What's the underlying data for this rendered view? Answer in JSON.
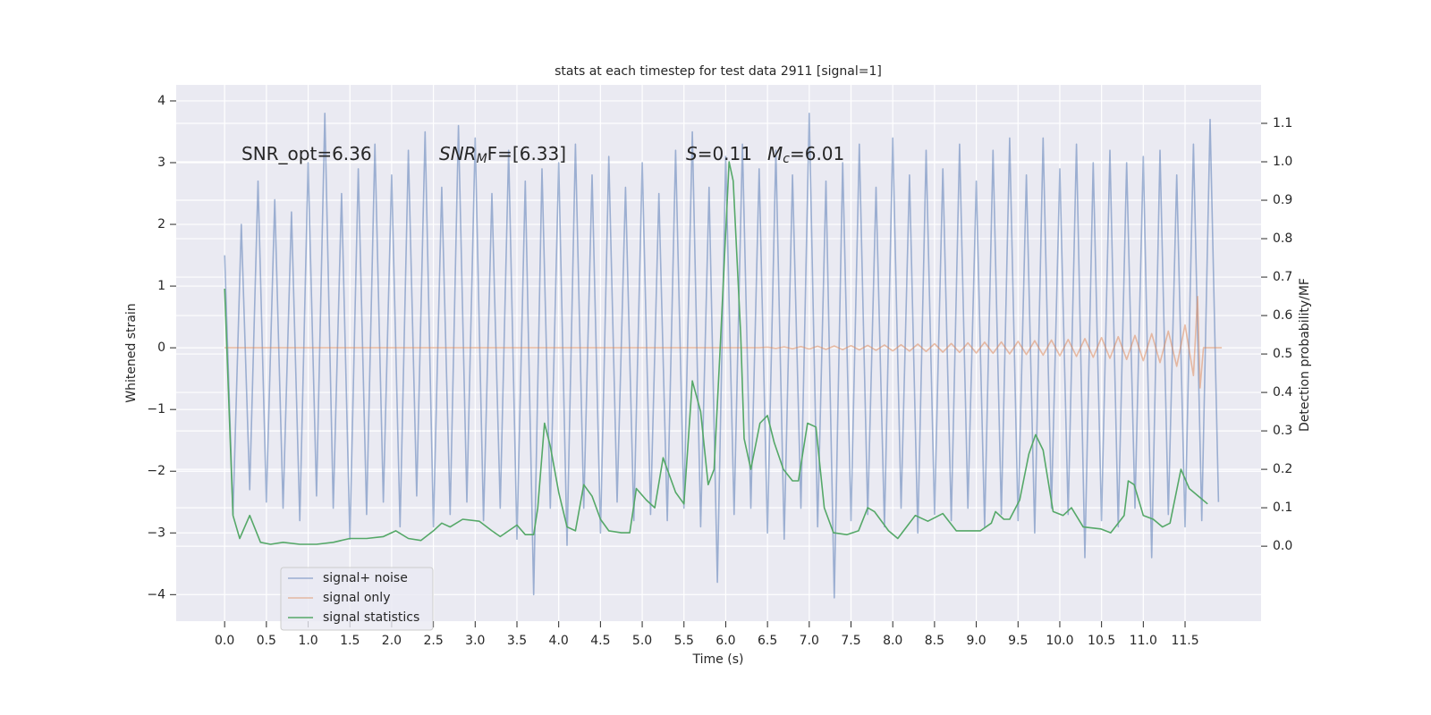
{
  "chart_data": {
    "type": "line",
    "title": "stats at each timestep for test data 2911 [signal=1]",
    "xlabel": "Time (s)",
    "ylabel": "Whitened strain",
    "y2label": "Detection probability/MF",
    "annotations": [
      {
        "main": "SNR_opt=6.36"
      },
      {
        "main": "SNR",
        "sub": "M",
        "tail": "F=[6.33]"
      },
      {
        "main": "S",
        "tail": "=0.11"
      },
      {
        "main": "M",
        "sub": "c",
        "tail": "=6.01"
      }
    ],
    "xlim": [
      -0.58,
      12.41
    ],
    "ylim": [
      -4.43,
      4.26
    ],
    "y2lim": [
      -0.195,
      1.2
    ],
    "xticks": [
      {
        "value": 0,
        "label": "0.0"
      },
      0.5,
      {
        "value": 1,
        "label": "1.0"
      },
      1.5,
      {
        "value": 2,
        "label": "2.0"
      },
      2.5,
      {
        "value": 3,
        "label": "3.0"
      },
      3.5,
      {
        "value": 4,
        "label": "4.0"
      },
      4.5,
      {
        "value": 5,
        "label": "5.0"
      },
      5.5,
      {
        "value": 6,
        "label": "6.0"
      },
      6.5,
      {
        "value": 7,
        "label": "7.0"
      },
      7.5,
      {
        "value": 8,
        "label": "8.0"
      },
      8.5,
      {
        "value": 9,
        "label": "9.0"
      },
      9.5,
      {
        "value": 10,
        "label": "10.0"
      },
      10.5,
      {
        "value": 11,
        "label": "11.0"
      },
      11.5
    ],
    "yticks": [
      {
        "value": -4,
        "label": "−4"
      },
      {
        "value": -3,
        "label": "−3"
      },
      {
        "value": -2,
        "label": "−2"
      },
      {
        "value": -1,
        "label": "−1"
      },
      0,
      1,
      2,
      3,
      4
    ],
    "y2ticks": [
      {
        "value": 0,
        "label": "0.0"
      },
      0.1,
      0.2,
      0.3,
      0.4,
      0.5,
      0.6,
      0.7,
      0.8,
      0.9,
      {
        "value": 1,
        "label": "1.0"
      },
      1.1
    ],
    "grid": true,
    "legend_loc": "lower left",
    "series": [
      {
        "name": "signal+ noise",
        "color": "#4c72b0",
        "alpha": 0.5,
        "x": [
          0,
          0.1,
          0.2,
          0.3,
          0.4,
          0.5,
          0.6,
          0.7,
          0.8,
          0.9,
          1,
          1.1,
          1.2,
          1.3,
          1.4,
          1.5,
          1.6,
          1.7,
          1.8,
          1.9,
          2,
          2.1,
          2.2,
          2.3,
          2.4,
          2.5,
          2.6,
          2.7,
          2.8,
          2.9,
          3,
          3.1,
          3.2,
          3.3,
          3.4,
          3.5,
          3.6,
          3.7,
          3.8,
          3.9,
          4,
          4.1,
          4.2,
          4.3,
          4.4,
          4.5,
          4.6,
          4.7,
          4.8,
          4.9,
          5,
          5.1,
          5.2,
          5.3,
          5.4,
          5.5,
          5.6,
          5.7,
          5.8,
          5.9,
          6,
          6.1,
          6.2,
          6.3,
          6.4,
          6.5,
          6.6,
          6.7,
          6.8,
          6.9,
          7,
          7.1,
          7.2,
          7.3,
          7.4,
          7.5,
          7.6,
          7.7,
          7.8,
          7.9,
          8,
          8.1,
          8.2,
          8.3,
          8.4,
          8.5,
          8.6,
          8.7,
          8.8,
          8.9,
          9,
          9.1,
          9.2,
          9.3,
          9.4,
          9.5,
          9.6,
          9.7,
          9.8,
          9.9,
          10,
          10.1,
          10.2,
          10.3,
          10.4,
          10.5,
          10.6,
          10.7,
          10.8,
          10.9,
          11,
          11.1,
          11.2,
          11.3,
          11.4,
          11.5,
          11.6,
          11.7,
          11.8,
          11.9
        ],
        "values": [
          1.5,
          -2.7,
          2.0,
          -2.3,
          2.7,
          -2.5,
          2.4,
          -2.6,
          2.2,
          -2.8,
          3.0,
          -2.4,
          3.8,
          -2.6,
          2.5,
          -3.1,
          2.9,
          -2.7,
          3.3,
          -2.5,
          2.8,
          -2.9,
          3.2,
          -2.4,
          3.5,
          -2.9,
          2.6,
          -2.7,
          3.6,
          -2.5,
          3.4,
          -2.8,
          2.5,
          -2.6,
          3.2,
          -3.1,
          2.7,
          -4.0,
          2.9,
          -2.6,
          3.0,
          -3.2,
          3.3,
          -2.6,
          2.8,
          -3.0,
          3.1,
          -2.5,
          2.6,
          -2.8,
          3.0,
          -2.7,
          2.5,
          -2.8,
          3.2,
          -2.6,
          3.5,
          -2.9,
          2.6,
          -3.8,
          3.1,
          -2.7,
          3.3,
          -2.6,
          2.9,
          -3.0,
          3.2,
          -3.1,
          2.8,
          -2.6,
          3.8,
          -2.9,
          2.7,
          -4.05,
          3.0,
          -2.8,
          3.3,
          -2.7,
          2.6,
          -2.9,
          3.4,
          -2.6,
          2.8,
          -3.0,
          3.2,
          -2.7,
          2.9,
          -2.8,
          3.3,
          -2.6,
          2.7,
          -2.9,
          3.2,
          -2.7,
          3.4,
          -2.8,
          2.8,
          -3.0,
          3.4,
          -2.6,
          2.9,
          -2.7,
          3.3,
          -3.4,
          3.0,
          -2.8,
          3.2,
          -2.9,
          3.0,
          -2.6,
          3.1,
          -3.4,
          3.2,
          -2.7,
          2.8,
          -2.9,
          3.3,
          -2.8,
          3.7,
          -2.5
        ]
      },
      {
        "name": "signal only",
        "color": "#dd8452",
        "alpha": 0.5,
        "x": [
          0,
          6.4,
          6.5,
          6.6,
          6.7,
          6.8,
          6.9,
          7,
          7.1,
          7.2,
          7.3,
          7.4,
          7.5,
          7.6,
          7.7,
          7.8,
          7.9,
          8,
          8.1,
          8.2,
          8.3,
          8.4,
          8.5,
          8.6,
          8.7,
          8.8,
          8.9,
          9,
          9.1,
          9.2,
          9.3,
          9.4,
          9.5,
          9.6,
          9.7,
          9.8,
          9.9,
          10,
          10.1,
          10.2,
          10.3,
          10.4,
          10.5,
          10.6,
          10.7,
          10.8,
          10.9,
          11,
          11.1,
          11.2,
          11.3,
          11.4,
          11.5,
          11.6,
          11.65,
          11.68,
          11.72,
          11.94
        ],
        "values": [
          0,
          0,
          0.01,
          -0.01,
          0.015,
          -0.015,
          0.02,
          -0.02,
          0.025,
          -0.025,
          0.03,
          -0.03,
          0.035,
          -0.035,
          0.04,
          -0.04,
          0.045,
          -0.05,
          0.05,
          -0.055,
          0.06,
          -0.06,
          0.065,
          -0.07,
          0.07,
          -0.075,
          0.08,
          -0.085,
          0.09,
          -0.09,
          0.095,
          -0.1,
          0.105,
          -0.11,
          0.115,
          -0.12,
          0.125,
          -0.13,
          0.135,
          -0.14,
          0.15,
          -0.155,
          0.165,
          -0.17,
          0.18,
          -0.19,
          0.2,
          -0.21,
          0.23,
          -0.24,
          0.27,
          -0.3,
          0.37,
          -0.45,
          0.83,
          -0.65,
          0,
          0
        ]
      },
      {
        "name": "signal statistics",
        "color": "#55a868",
        "alpha": 1,
        "axis": "y2",
        "x": [
          0,
          0.1,
          0.18,
          0.3,
          0.43,
          0.55,
          0.7,
          0.9,
          1.1,
          1.3,
          1.5,
          1.7,
          1.9,
          2.05,
          2.2,
          2.35,
          2.5,
          2.6,
          2.7,
          2.85,
          3.05,
          3.2,
          3.3,
          3.4,
          3.5,
          3.6,
          3.7,
          3.75,
          3.83,
          3.9,
          4.0,
          4.1,
          4.2,
          4.3,
          4.4,
          4.5,
          4.6,
          4.75,
          4.85,
          4.93,
          5.05,
          5.15,
          5.25,
          5.4,
          5.5,
          5.6,
          5.7,
          5.79,
          5.86,
          5.93,
          6.04,
          6.09,
          6.18,
          6.22,
          6.3,
          6.41,
          6.5,
          6.58,
          6.69,
          6.8,
          6.87,
          6.98,
          7.08,
          7.18,
          7.29,
          7.45,
          7.59,
          7.7,
          7.78,
          7.95,
          8.06,
          8.27,
          8.42,
          8.6,
          8.76,
          8.94,
          9.05,
          9.18,
          9.23,
          9.33,
          9.4,
          9.52,
          9.63,
          9.71,
          9.8,
          9.92,
          10.04,
          10.14,
          10.28,
          10.49,
          10.61,
          10.77,
          10.82,
          10.89,
          11.0,
          11.12,
          11.23,
          11.32,
          11.45,
          11.55,
          11.66,
          11.77
        ],
        "values": [
          0.67,
          0.08,
          0.02,
          0.08,
          0.01,
          0.005,
          0.01,
          0.005,
          0.005,
          0.01,
          0.02,
          0.02,
          0.025,
          0.04,
          0.02,
          0.015,
          0.04,
          0.06,
          0.05,
          0.07,
          0.065,
          0.04,
          0.025,
          0.04,
          0.055,
          0.03,
          0.03,
          0.1,
          0.32,
          0.26,
          0.14,
          0.05,
          0.04,
          0.16,
          0.13,
          0.07,
          0.04,
          0.035,
          0.035,
          0.15,
          0.12,
          0.1,
          0.23,
          0.14,
          0.11,
          0.43,
          0.35,
          0.16,
          0.2,
          0.5,
          1.0,
          0.95,
          0.55,
          0.28,
          0.2,
          0.32,
          0.34,
          0.27,
          0.2,
          0.17,
          0.17,
          0.32,
          0.31,
          0.1,
          0.035,
          0.03,
          0.04,
          0.1,
          0.09,
          0.04,
          0.02,
          0.08,
          0.065,
          0.085,
          0.04,
          0.04,
          0.04,
          0.06,
          0.09,
          0.07,
          0.07,
          0.12,
          0.24,
          0.29,
          0.25,
          0.09,
          0.08,
          0.1,
          0.05,
          0.045,
          0.035,
          0.08,
          0.17,
          0.16,
          0.08,
          0.07,
          0.05,
          0.06,
          0.2,
          0.15,
          0.13,
          0.11
        ]
      }
    ]
  }
}
